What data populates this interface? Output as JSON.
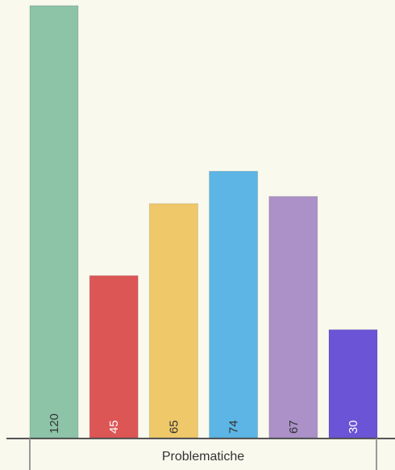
{
  "chart_data": {
    "type": "bar",
    "title": "",
    "xlabel": "Problematiche",
    "ylabel": "",
    "categories": [
      "",
      "",
      "",
      "",
      "",
      ""
    ],
    "values": [
      120,
      45,
      65,
      74,
      67,
      30
    ],
    "value_labels": [
      "120",
      "45",
      "65",
      "74",
      "67",
      "30"
    ],
    "colors": [
      "#8dc4a8",
      "#dc5656",
      "#efc86a",
      "#5db5e5",
      "#ab91c8",
      "#6b54d6"
    ],
    "label_colors": [
      "#333333",
      "#ffffff",
      "#333333",
      "#333333",
      "#333333",
      "#ffffff"
    ],
    "ylim": [
      0,
      120
    ],
    "grid": false,
    "legend": "none"
  }
}
